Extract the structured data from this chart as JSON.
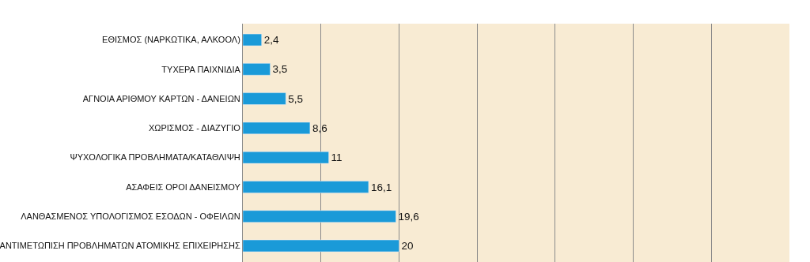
{
  "chart_data": {
    "type": "bar",
    "orientation": "horizontal",
    "categories": [
      "ΕΘΙΣΜΟΣ (ΝΑΡΚΩΤΙΚΑ, ΑΛΚΟΟΛ)",
      "ΤΥΧΕΡΑ ΠΑΙΧΝΙΔΙΑ",
      "ΑΓΝΟΙΑ ΑΡΙΘΜΟΥ ΚΑΡΤΩΝ - ΔΑΝΕΙΩΝ",
      "ΧΩΡΙΣΜΟΣ - ΔΙΑΖΥΓΙΟ",
      "ΨΥΧΟΛΟΓΙΚΑ ΠΡΟΒΛΗΜΑΤΑ/ΚΑΤΑΘΛΙΨΗ",
      "ΑΣΑΦΕΙΣ ΟΡΟΙ ΔΑΝΕΙΣΜΟΥ",
      "ΛΑΝΘΑΣΜΕΝΟΣ ΥΠΟΛΟΓΙΣΜΟΣ ΕΣΟΔΩΝ - ΟΦΕΙΛΩΝ",
      "ΑΝΤΙΜΕΤΩΠΙΣΗ ΠΡΟΒΛΗΜΑΤΩΝ ΑΤΟΜΙΚΗΣ ΕΠΙΧΕΙΡΗΣΗΣ"
    ],
    "values": [
      2.4,
      3.5,
      5.5,
      8.6,
      11,
      16.1,
      19.6,
      20
    ],
    "value_labels": [
      "2,4",
      "3,5",
      "5,5",
      "8,6",
      "11",
      "16,1",
      "19,6",
      "20"
    ],
    "color": "#1a9ad8",
    "xlim": [
      0,
      70
    ],
    "xticks": [
      {
        "value": 0,
        "label": null
      },
      {
        "value": 10,
        "label": null
      },
      {
        "value": 20,
        "label": null
      },
      {
        "value": 30,
        "label": null
      },
      {
        "value": 40,
        "label": null
      },
      {
        "value": 50,
        "label": null
      },
      {
        "value": 60,
        "label": null
      },
      {
        "value": 70,
        "label": null
      }
    ],
    "tick_labels": "y",
    "grid": "x"
  }
}
